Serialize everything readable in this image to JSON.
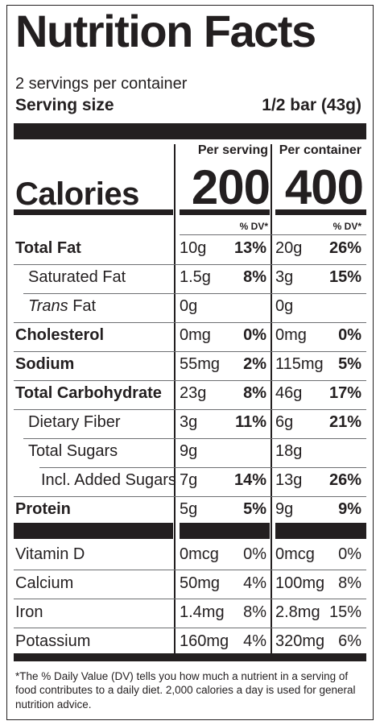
{
  "title": "Nutrition Facts",
  "servings_per_container": "2 servings per container",
  "serving_size": {
    "label": "Serving size",
    "value": "1/2 bar (43g)"
  },
  "columns": {
    "per_serving": "Per serving",
    "per_container": "Per container"
  },
  "calories": {
    "label": "Calories",
    "per_serving": "200",
    "per_container": "400"
  },
  "dv_header": "% DV*",
  "nutrients": [
    {
      "label": "Total Fat",
      "bold": true,
      "indent": 0,
      "s_amt": "10g",
      "s_dv": "13%",
      "c_amt": "20g",
      "c_dv": "26%"
    },
    {
      "label": "Saturated Fat",
      "bold": false,
      "indent": 1,
      "s_amt": "1.5g",
      "s_dv": "8%",
      "c_amt": "3g",
      "c_dv": "15%"
    },
    {
      "label_italic": "Trans",
      "label_rest": " Fat",
      "bold": false,
      "indent": 1,
      "s_amt": "0g",
      "s_dv": "",
      "c_amt": "0g",
      "c_dv": ""
    },
    {
      "label": "Cholesterol",
      "bold": true,
      "indent": 0,
      "s_amt": "0mg",
      "s_dv": "0%",
      "c_amt": "0mg",
      "c_dv": "0%"
    },
    {
      "label": "Sodium",
      "bold": true,
      "indent": 0,
      "s_amt": "55mg",
      "s_dv": "2%",
      "c_amt": "115mg",
      "c_dv": "5%"
    },
    {
      "label": "Total Carbohydrate",
      "bold": true,
      "indent": 0,
      "s_amt": "23g",
      "s_dv": "8%",
      "c_amt": "46g",
      "c_dv": "17%"
    },
    {
      "label": "Dietary Fiber",
      "bold": false,
      "indent": 1,
      "s_amt": "3g",
      "s_dv": "11%",
      "c_amt": "6g",
      "c_dv": "21%"
    },
    {
      "label": "Total Sugars",
      "bold": false,
      "indent": 1,
      "s_amt": "9g",
      "s_dv": "",
      "c_amt": "18g",
      "c_dv": ""
    },
    {
      "label": "Incl. Added Sugars",
      "bold": false,
      "indent": 2,
      "s_amt": "7g",
      "s_dv": "14%",
      "c_amt": "13g",
      "c_dv": "26%"
    },
    {
      "label": "Protein",
      "bold": true,
      "indent": 0,
      "s_amt": "5g",
      "s_dv": "5%",
      "c_amt": "9g",
      "c_dv": "9%"
    }
  ],
  "vitamins": [
    {
      "label": "Vitamin D",
      "s_amt": "0mcg",
      "s_dv": "0%",
      "c_amt": "0mcg",
      "c_dv": "0%"
    },
    {
      "label": "Calcium",
      "s_amt": "50mg",
      "s_dv": "4%",
      "c_amt": "100mg",
      "c_dv": "8%"
    },
    {
      "label": "Iron",
      "s_amt": "1.4mg",
      "s_dv": "8%",
      "c_amt": "2.8mg",
      "c_dv": "15%"
    },
    {
      "label": "Potassium",
      "s_amt": "160mg",
      "s_dv": "4%",
      "c_amt": "320mg",
      "c_dv": "6%"
    }
  ],
  "footnote": "*The % Daily Value (DV) tells you how much a nutrient in a serving of food contributes to a daily diet. 2,000 calories a day is used for general nutrition advice."
}
